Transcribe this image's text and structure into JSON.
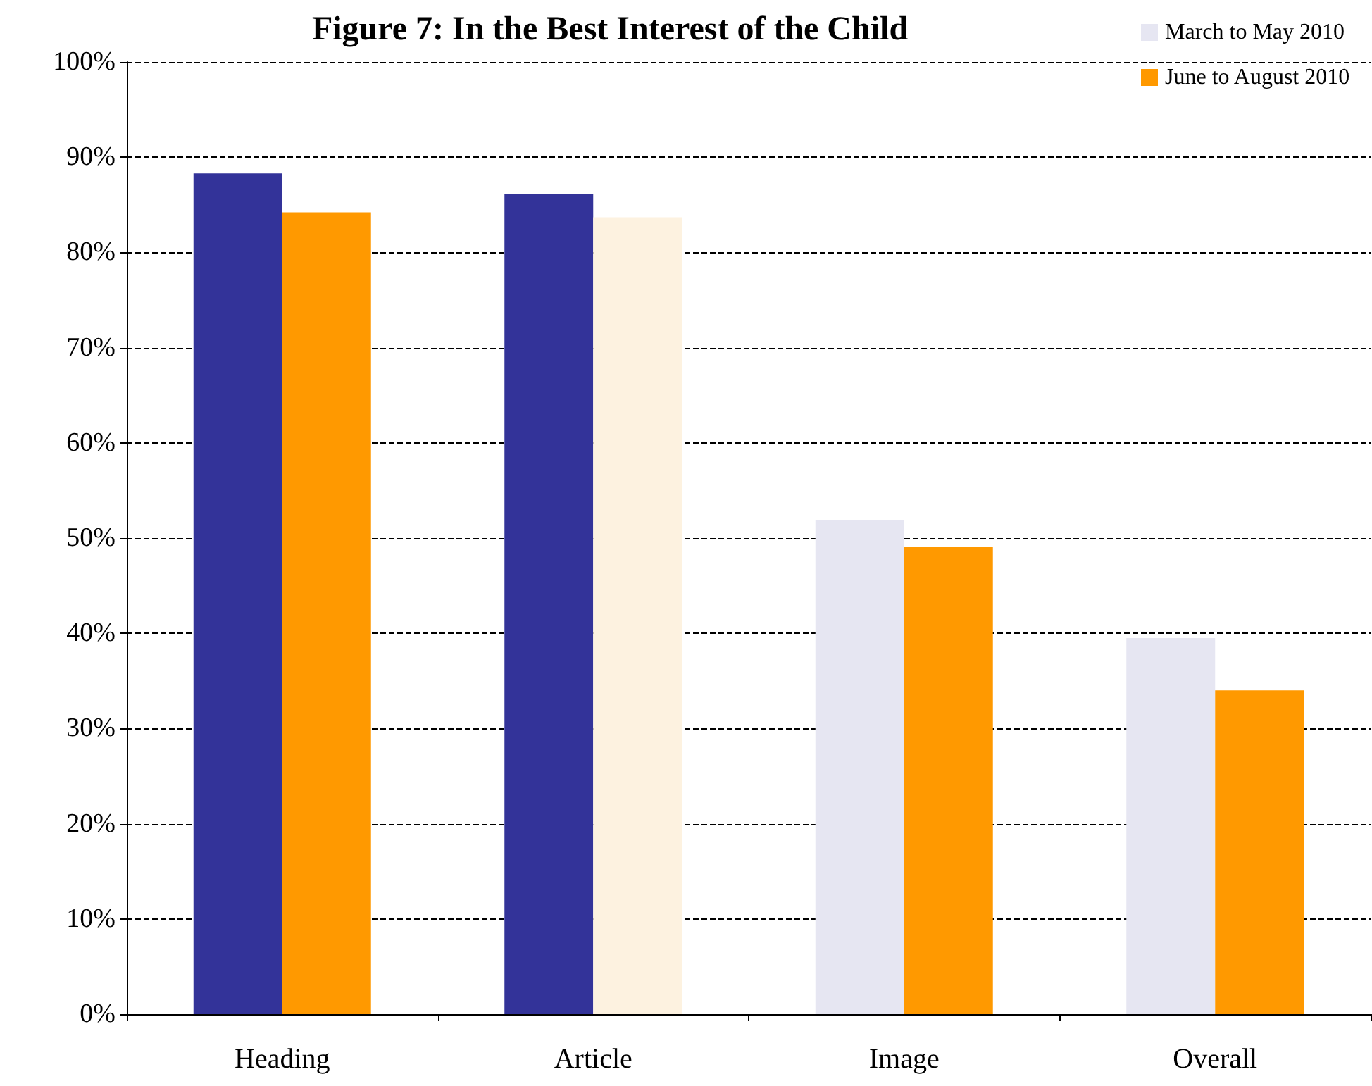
{
  "chart_data": {
    "type": "bar",
    "title": "Figure 7: In the Best Interest of the Child",
    "categories": [
      "Heading",
      "Article",
      "Image",
      "Overall"
    ],
    "series": [
      {
        "name": "March to May 2010",
        "color": "#e6e6f2",
        "colors": [
          "#333399",
          "#333399",
          "#e6e6f2",
          "#e6e6f2"
        ],
        "values": [
          88.3,
          86.1,
          51.9,
          39.5
        ]
      },
      {
        "name": "June to August 2010",
        "color": "#ff9900",
        "colors": [
          "#ff9900",
          "#fdf2e0",
          "#ff9900",
          "#ff9900"
        ],
        "values": [
          84.2,
          83.7,
          49.1,
          34.0
        ]
      }
    ],
    "ylim": [
      0,
      100
    ],
    "yticks": [
      {
        "value": 0,
        "label": "0%"
      },
      {
        "value": 10,
        "label": "10%"
      },
      {
        "value": 20,
        "label": "20%"
      },
      {
        "value": 30,
        "label": "30%"
      },
      {
        "value": 40,
        "label": "40%"
      },
      {
        "value": 50,
        "label": "50%"
      },
      {
        "value": 60,
        "label": "60%"
      },
      {
        "value": 70,
        "label": "70%"
      },
      {
        "value": 80,
        "label": "80%"
      },
      {
        "value": 90,
        "label": "90%"
      },
      {
        "value": 100,
        "label": "100%"
      }
    ],
    "grid": "y",
    "legend": "top right"
  }
}
